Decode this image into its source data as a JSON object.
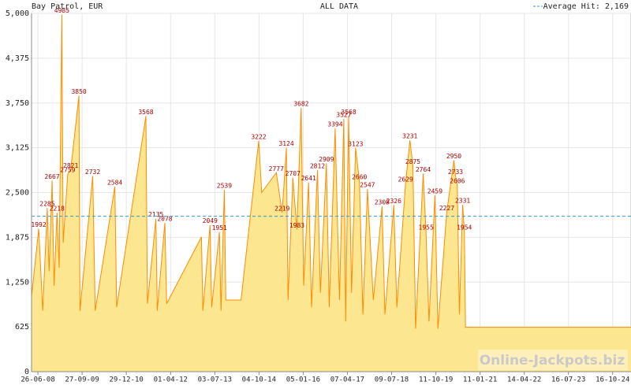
{
  "chart_data": {
    "type": "area",
    "title": "ALL DATA",
    "subtitle": "Bay Patrol, EUR",
    "watermark": "Online-Jackpots.biz",
    "average": {
      "value": 2169,
      "label": "Average Hit: 2,169",
      "color": "#3399cc"
    },
    "grid": true,
    "ylim": [
      0,
      5000
    ],
    "yticks": [
      0,
      {
        "value": 625,
        "label": "625"
      },
      {
        "value": 1250,
        "label": "1,250"
      },
      {
        "value": 1875,
        "label": "1,875"
      },
      {
        "value": 2500,
        "label": "2,500"
      },
      {
        "value": 3125,
        "label": "3,125"
      },
      {
        "value": 3750,
        "label": "3,750"
      },
      {
        "value": 4375,
        "label": "4,375"
      },
      {
        "value": 5000,
        "label": "5,000"
      }
    ],
    "xlim": [
      "2008-04-21",
      "2025-04-24"
    ],
    "xticks": [
      {
        "value": "2008-06-26",
        "label": "26-06-08"
      },
      {
        "value": "2009-09-27",
        "label": "27-09-09"
      },
      {
        "value": "2010-12-29",
        "label": "29-12-10"
      },
      {
        "value": "2012-04-01",
        "label": "01-04-12"
      },
      {
        "value": "2013-07-03",
        "label": "03-07-13"
      },
      {
        "value": "2014-10-04",
        "label": "04-10-14"
      },
      {
        "value": "2016-01-05",
        "label": "05-01-16"
      },
      {
        "value": "2017-04-07",
        "label": "07-04-17"
      },
      {
        "value": "2018-07-09",
        "label": "09-07-18"
      },
      {
        "value": "2019-10-11",
        "label": "11-10-19"
      },
      {
        "value": "2021-01-11",
        "label": "11-01-21"
      },
      {
        "value": "2022-04-14",
        "label": "14-04-22"
      },
      {
        "value": "2023-07-16",
        "label": "16-07-23"
      },
      {
        "value": "2024-10-16",
        "label": "16-10-24"
      }
    ],
    "series": [
      {
        "name": "Bay Patrol",
        "color": "#ff8c00",
        "fill": "#fde690",
        "label_color": "#aa0000",
        "x": [
          "2008-04-21",
          "2008-07-04",
          "2008-08-15",
          "2008-10-01",
          "2008-10-20",
          "2008-11-20",
          "2008-12-10",
          "2009-01-10",
          "2009-02-01",
          "2009-03-01",
          "2009-03-15",
          "2009-05-01",
          "2009-06-01",
          "2009-08-25",
          "2009-09-05",
          "2010-01-15",
          "2010-02-10",
          "2010-09-01",
          "2010-09-20",
          "2011-07-20",
          "2011-08-05",
          "2011-11-01",
          "2011-11-15",
          "2012-02-01",
          "2012-02-20",
          "2013-02-15",
          "2013-03-01",
          "2013-05-15",
          "2013-06-01",
          "2013-08-20",
          "2013-09-05",
          "2013-10-10",
          "2013-10-25",
          "2014-04-01",
          "2014-10-01",
          "2014-11-01",
          "2015-04-01",
          "2015-06-01",
          "2015-07-15",
          "2015-08-01",
          "2015-09-20",
          "2015-11-01",
          "2015-12-15",
          "2016-01-10",
          "2016-03-01",
          "2016-04-01",
          "2016-06-01",
          "2016-07-01",
          "2016-09-01",
          "2016-10-01",
          "2016-12-01",
          "2017-01-15",
          "2017-03-01",
          "2017-03-20",
          "2017-04-20",
          "2017-05-20",
          "2017-07-01",
          "2017-08-10",
          "2017-09-15",
          "2017-11-01",
          "2018-01-01",
          "2018-04-01",
          "2018-05-01",
          "2018-08-01",
          "2018-09-01",
          "2018-12-01",
          "2019-01-15",
          "2019-02-15",
          "2019-03-15",
          "2019-06-01",
          "2019-07-01",
          "2019-08-01",
          "2019-10-01",
          "2019-11-01",
          "2020-02-01",
          "2020-04-15",
          "2020-05-01",
          "2020-05-20",
          "2020-06-10",
          "2020-07-15",
          "2020-08-01",
          "2020-08-10",
          "2020-08-12",
          "2025-04-24"
        ],
        "values": [
          1050,
          1992,
          850,
          2285,
          1400,
          2667,
          1200,
          2218,
          1450,
          4985,
          1800,
          2759,
          2821,
          3850,
          850,
          2732,
          850,
          2584,
          900,
          3568,
          950,
          2135,
          850,
          2078,
          950,
          1880,
          850,
          2049,
          900,
          1951,
          850,
          2539,
          1000,
          1000,
          3222,
          2500,
          2777,
          2219,
          3124,
          1000,
          2707,
          1983,
          3682,
          1200,
          2641,
          900,
          2812,
          1100,
          2909,
          900,
          3394,
          1000,
          3527,
          700,
          3568,
          1100,
          3123,
          2660,
          800,
          2547,
          1000,
          2308,
          800,
          2326,
          900,
          2629,
          3231,
          2875,
          600,
          2764,
          1955,
          700,
          2459,
          600,
          2227,
          2950,
          2733,
          2606,
          800,
          2331,
          1954,
          1000,
          620,
          620
        ],
        "value_labels": [
          null,
          "1992",
          null,
          "2285",
          null,
          "2667",
          null,
          "2218",
          null,
          "4985",
          null,
          "2759",
          "2821",
          "3850",
          null,
          "2732",
          null,
          "2584",
          null,
          "3568",
          null,
          "2135",
          null,
          "2078",
          null,
          null,
          null,
          "2049",
          null,
          "1951",
          null,
          "2539",
          null,
          null,
          "3222",
          null,
          "2777",
          "2219",
          "3124",
          null,
          "2707",
          "1983",
          "3682",
          null,
          "2641",
          null,
          "2812",
          null,
          "2909",
          null,
          "3394",
          null,
          "3527",
          null,
          "3568",
          null,
          "3123",
          "2660",
          null,
          "2547",
          null,
          "2308",
          null,
          "2326",
          null,
          "2629",
          "3231",
          "2875",
          null,
          "2764",
          "1955",
          null,
          "2459",
          null,
          "2227",
          "2950",
          "2733",
          "2606",
          null,
          "2331",
          "1954",
          null,
          null,
          null
        ]
      }
    ]
  }
}
